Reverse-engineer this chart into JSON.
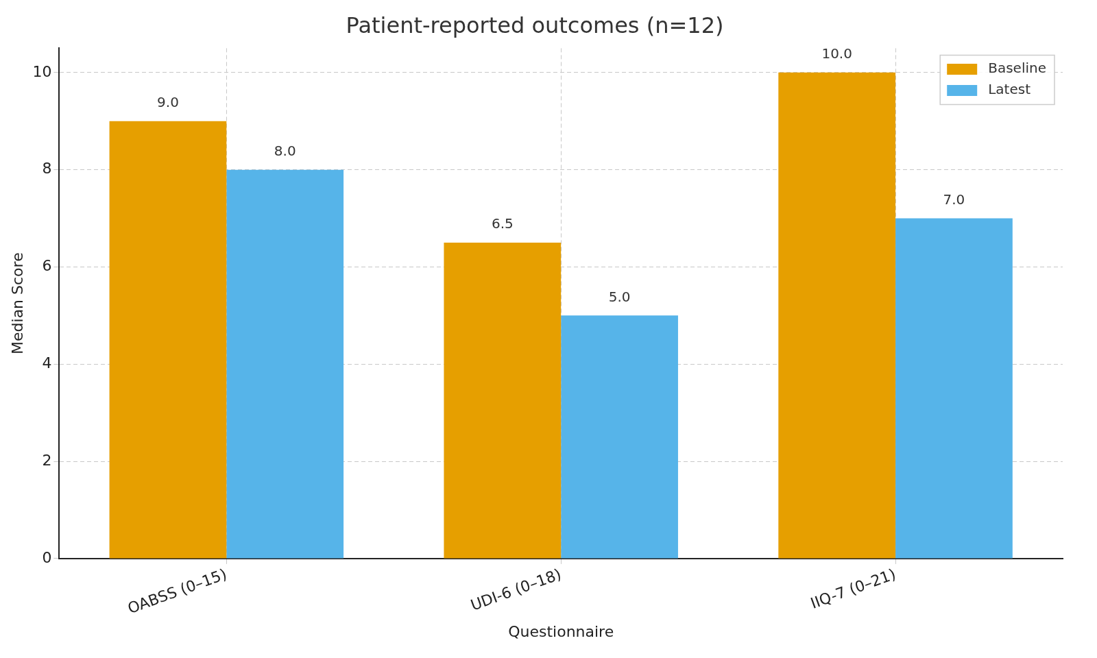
{
  "chart_data": {
    "type": "bar",
    "title": "Patient-reported outcomes (n=12)",
    "xlabel": "Questionnaire",
    "ylabel": "Median Score",
    "categories": [
      "OABSS (0–15)",
      "UDI-6 (0–18)",
      "IIQ-7 (0–21)"
    ],
    "series": [
      {
        "name": "Baseline",
        "color": "#e69f00",
        "values": [
          9.0,
          6.5,
          10.0
        ],
        "value_labels": [
          "9.0",
          "6.5",
          "10.0"
        ]
      },
      {
        "name": "Latest",
        "color": "#56b4e9",
        "values": [
          8.0,
          5.0,
          7.0
        ],
        "value_labels": [
          "8.0",
          "5.0",
          "7.0"
        ]
      }
    ],
    "ylim": [
      0,
      10.5
    ],
    "yticks": [
      0,
      2,
      4,
      6,
      8,
      10
    ],
    "grid": true,
    "legend": "top right"
  }
}
